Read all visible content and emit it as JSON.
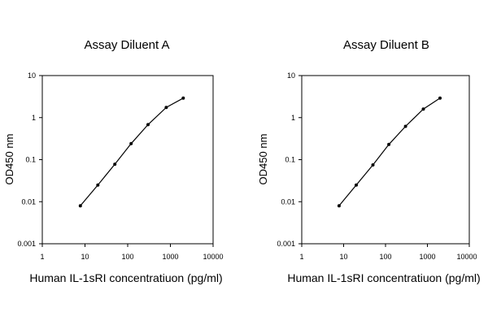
{
  "chart_data": [
    {
      "type": "line",
      "title": "Assay Diluent A",
      "xlabel": "Human IL-1sRI concentratiuon (pg/ml)",
      "ylabel": "OD450 nm",
      "x_scale": "log",
      "y_scale": "log",
      "xlim": [
        1,
        10000
      ],
      "ylim": [
        0.001,
        10
      ],
      "x_ticks": [
        "1",
        "10",
        "100",
        "1000",
        "10000"
      ],
      "y_ticks": [
        "0.001",
        "0.01",
        "0.1",
        "1",
        "10"
      ],
      "grid": false,
      "series": [
        {
          "x": [
            7.8,
            20,
            50,
            120,
            300,
            800,
            2000
          ],
          "y": [
            0.008,
            0.025,
            0.078,
            0.24,
            0.68,
            1.75,
            2.9
          ]
        }
      ]
    },
    {
      "type": "line",
      "title": "Assay Diluent B",
      "xlabel": "Human IL-1sRI concentratiuon (pg/ml)",
      "ylabel": "OD450 nm",
      "x_scale": "log",
      "y_scale": "log",
      "xlim": [
        1,
        10000
      ],
      "ylim": [
        0.001,
        10
      ],
      "x_ticks": [
        "1",
        "10",
        "100",
        "1000",
        "10000"
      ],
      "y_ticks": [
        "0.001",
        "0.01",
        "0.1",
        "1",
        "10"
      ],
      "grid": false,
      "series": [
        {
          "x": [
            7.8,
            20,
            50,
            120,
            300,
            800,
            2000
          ],
          "y": [
            0.008,
            0.025,
            0.075,
            0.23,
            0.62,
            1.6,
            2.9
          ]
        }
      ]
    }
  ]
}
